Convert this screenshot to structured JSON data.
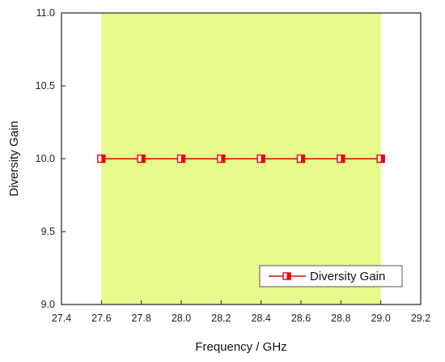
{
  "chart_data": {
    "type": "line",
    "xlabel": "Frequency / GHz",
    "ylabel": "Diversity Gain",
    "xlim": [
      27.4,
      29.2
    ],
    "ylim": [
      9.0,
      11.0
    ],
    "xticks": [
      "27.4",
      "27.6",
      "27.8",
      "28.0",
      "28.2",
      "28.4",
      "28.6",
      "28.8",
      "29.0",
      "29.2"
    ],
    "yticks": [
      "9.0",
      "9.5",
      "10.0",
      "10.5",
      "11.0"
    ],
    "x_tick_values": [
      27.4,
      27.6,
      27.8,
      28.0,
      28.2,
      28.4,
      28.6,
      28.8,
      29.0,
      29.2
    ],
    "y_tick_values": [
      9.0,
      9.5,
      10.0,
      10.5,
      11.0
    ],
    "shaded_band": {
      "x_start": 27.6,
      "x_end": 29.0,
      "color": "#e6f98a"
    },
    "grid": false,
    "legend_position": "bottom-right",
    "series": [
      {
        "name": "Diversity Gain",
        "color": "#e8000b",
        "marker": "half-filled-square",
        "x": [
          27.6,
          27.8,
          28.0,
          28.2,
          28.4,
          28.6,
          28.8,
          29.0
        ],
        "y": [
          10.0,
          10.0,
          10.0,
          10.0,
          10.0,
          10.0,
          10.0,
          10.0
        ]
      }
    ]
  }
}
